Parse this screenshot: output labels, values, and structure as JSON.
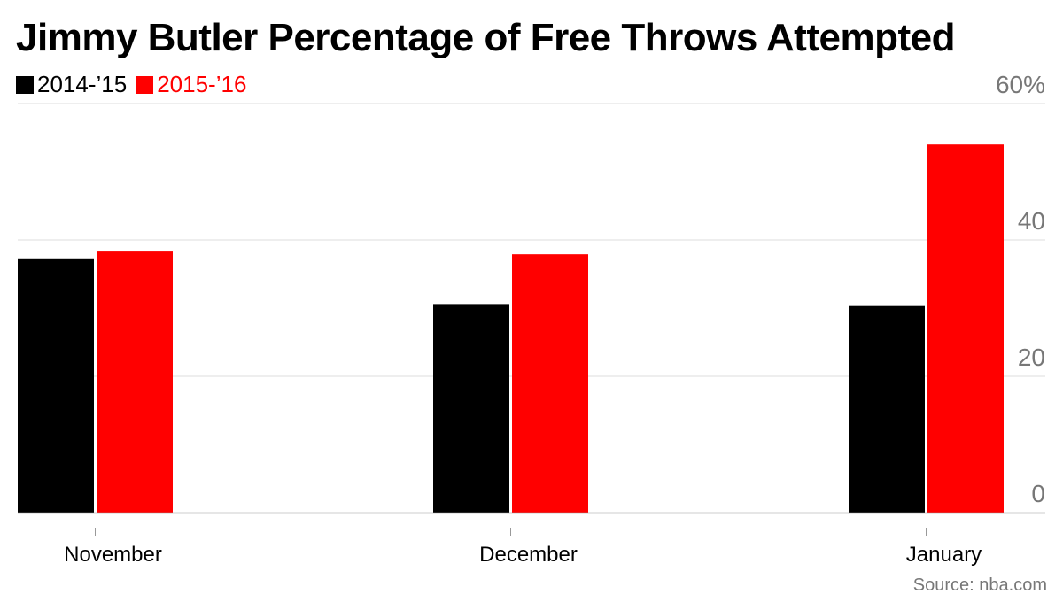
{
  "chart_data": {
    "type": "bar",
    "title": "Jimmy Butler Percentage of Free Throws Attempted",
    "categories": [
      "November",
      "December",
      "January"
    ],
    "series": [
      {
        "name": "2014-’15",
        "values": [
          37.3,
          30.6,
          30.3
        ],
        "color": "#000000"
      },
      {
        "name": "2015-’16",
        "values": [
          38.3,
          37.9,
          54.0
        ],
        "color": "#ff0000"
      }
    ],
    "y_ticks": [
      {
        "value": 0,
        "label": "0"
      },
      {
        "value": 20,
        "label": "20"
      },
      {
        "value": 40,
        "label": "40"
      },
      {
        "value": 60,
        "label": "60%"
      }
    ],
    "ylim": [
      0,
      60
    ],
    "xlabel": "",
    "ylabel": "",
    "grid": true,
    "legend_position": "top-left",
    "source": "Source: nba.com"
  }
}
